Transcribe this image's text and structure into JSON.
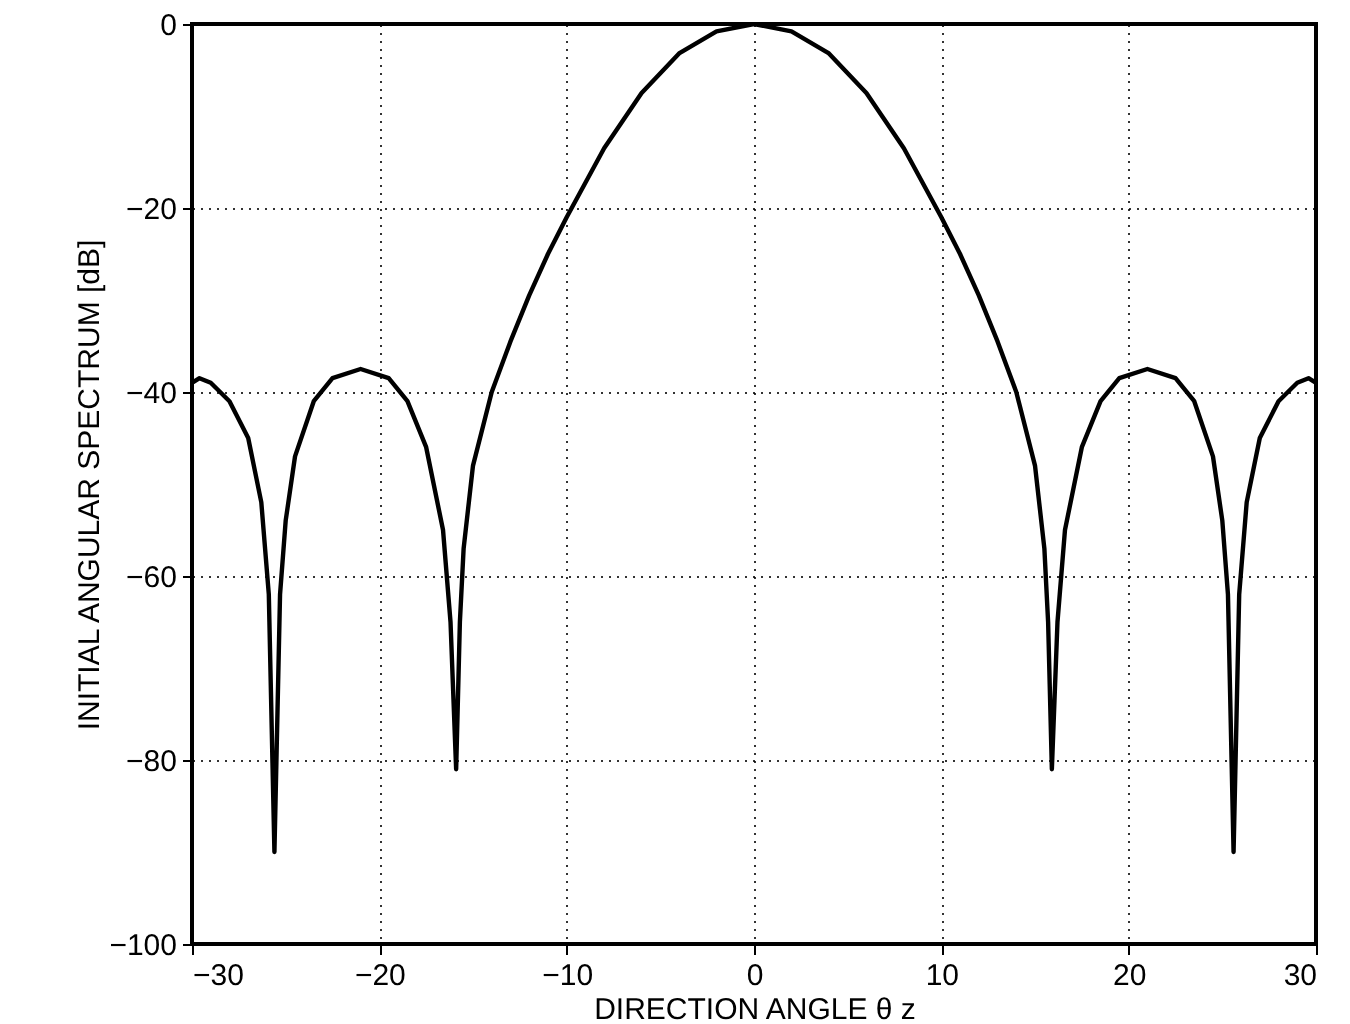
{
  "chart_data": {
    "type": "line",
    "xlabel": "DIRECTION ANGLE θ z",
    "ylabel": "INITIAL ANGULAR SPECTRUM [dB]",
    "x": [
      -30,
      -29.6,
      -29,
      -28,
      -27,
      -26.3,
      -25.9,
      -25.6,
      -25.3,
      -25,
      -24.5,
      -23.5,
      -22.5,
      -21,
      -19.5,
      -18.5,
      -17.5,
      -16.6,
      -16.2,
      -15.9,
      -15.7,
      -15.5,
      -15,
      -14,
      -13,
      -12,
      -11,
      -10,
      -8,
      -6,
      -4,
      -2,
      0,
      2,
      4,
      6,
      8,
      10,
      11,
      12,
      13,
      14,
      15,
      15.5,
      15.7,
      15.9,
      16.2,
      16.6,
      17.5,
      18.5,
      19.5,
      21,
      22.5,
      23.5,
      24.5,
      25,
      25.3,
      25.6,
      25.9,
      26.3,
      27,
      28,
      29,
      29.6,
      30
    ],
    "series": [
      {
        "color": "#000000",
        "values": [
          -39,
          -38.5,
          -39,
          -41,
          -45,
          -52,
          -62,
          -90,
          -62,
          -54,
          -47,
          -41,
          -38.5,
          -37.5,
          -38.5,
          -41,
          -46,
          -55,
          -65,
          -81,
          -65,
          -57,
          -48,
          -40,
          -34.5,
          -29.5,
          -25,
          -21,
          -13.5,
          -7.5,
          -3.2,
          -0.8,
          0,
          -0.8,
          -3.2,
          -7.5,
          -13.5,
          -21,
          -25,
          -29.5,
          -34.5,
          -40,
          -48,
          -57,
          -65,
          -81,
          -65,
          -55,
          -46,
          -41,
          -38.5,
          -37.5,
          -38.5,
          -41,
          -47,
          -54,
          -62,
          -90,
          -62,
          -52,
          -45,
          -41,
          -39,
          -38.5,
          -39
        ]
      }
    ],
    "xlim": [
      -30,
      30
    ],
    "xticks": [
      -30,
      -20,
      -10,
      0,
      10,
      20,
      30
    ],
    "ylim": [
      -100,
      0
    ],
    "yticks": [
      -100,
      -80,
      -60,
      -40,
      -20,
      0
    ],
    "grid": true,
    "line_style": "solid",
    "marker": "none"
  }
}
